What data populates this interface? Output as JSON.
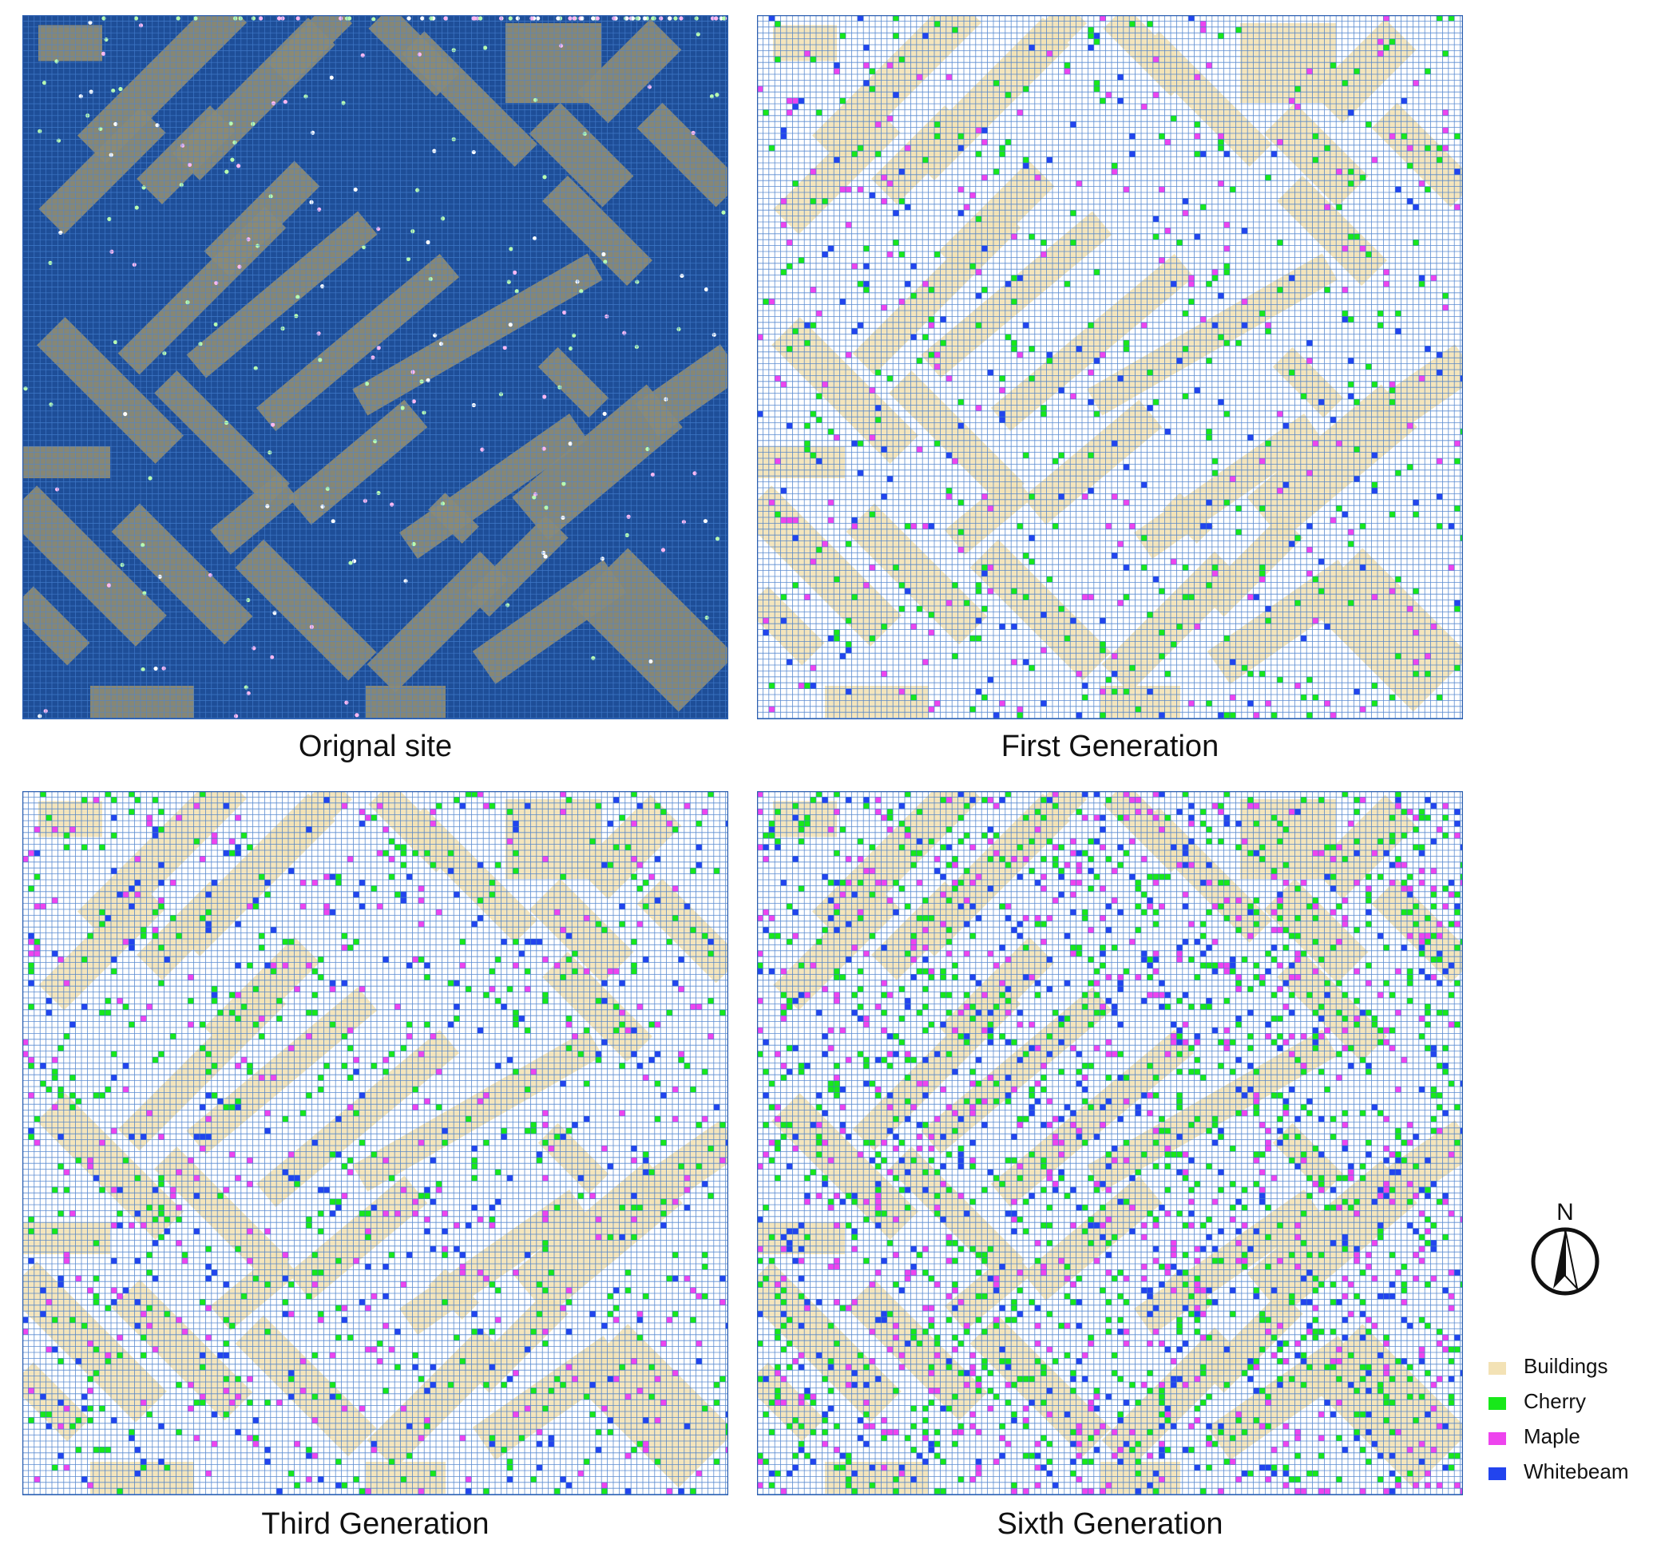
{
  "panels": [
    {
      "caption": "Orignal site",
      "background": "#1e4e98",
      "grid_color": "#4a86d8",
      "building_color": "#8c8a74",
      "tree_style": "dots",
      "generation": 0
    },
    {
      "caption": "First Generation",
      "background": "#ffffff",
      "grid_color": "#3f78c9",
      "building_color": "#f3e2b5",
      "tree_style": "cells",
      "generation": 1
    },
    {
      "caption": "Third Generation",
      "background": "#ffffff",
      "grid_color": "#3f78c9",
      "building_color": "#f3e2b5",
      "tree_style": "cells",
      "generation": 3
    },
    {
      "caption": "Sixth Generation",
      "background": "#ffffff",
      "grid_color": "#3f78c9",
      "building_color": "#f3e2b5",
      "tree_style": "cells",
      "generation": 6
    }
  ],
  "north_arrow": {
    "letter": "N",
    "icon": "north-arrow-icon"
  },
  "legend": {
    "items": [
      {
        "label": "Buildings",
        "color": "#f3e2b5"
      },
      {
        "label": "Cherry",
        "color": "#18e81a"
      },
      {
        "label": "Maple",
        "color": "#ee44ee"
      },
      {
        "label": "Whitebeam",
        "color": "#2244ee"
      }
    ]
  }
}
